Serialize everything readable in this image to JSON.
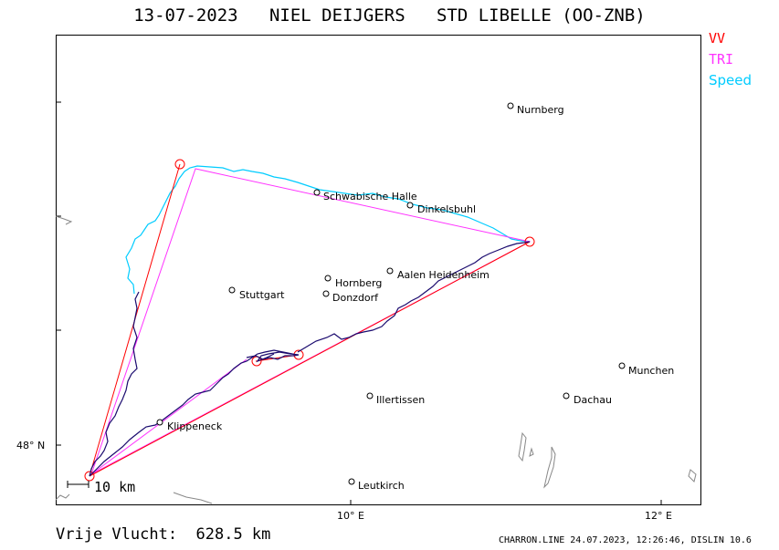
{
  "header": {
    "title": "13-07-2023   NIEL DEIJGERS   STD LIBELLE (OO-ZNB)"
  },
  "legend": {
    "vv": "VV",
    "tri": "TRI",
    "speed": "Speed"
  },
  "colors": {
    "vv": "#ff0000",
    "tri": "#ff33ff",
    "speed": "#00ccff",
    "track": "#000066",
    "lakes": "#888888"
  },
  "cities": [
    {
      "name": "Nurnberg"
    },
    {
      "name": "Schwabische Halle"
    },
    {
      "name": "Dinkelsbuhl"
    },
    {
      "name": "Hornberg"
    },
    {
      "name": "Aalen Heidenheim"
    },
    {
      "name": "Stuttgart"
    },
    {
      "name": "Donzdorf"
    },
    {
      "name": "Munchen"
    },
    {
      "name": "Illertissen"
    },
    {
      "name": "Dachau"
    },
    {
      "name": "Klippeneck"
    },
    {
      "name": "Leutkirch"
    }
  ],
  "axes": {
    "lat_label": "48° N",
    "lon_labels": [
      "10° E",
      "12° E"
    ]
  },
  "scale": {
    "label": "10 km"
  },
  "footer": {
    "distance": "Vrije Vlucht:  628.5 km",
    "credit": "CHARRON.LINE 24.07.2023, 12:26:46, DISLIN 10.6"
  }
}
